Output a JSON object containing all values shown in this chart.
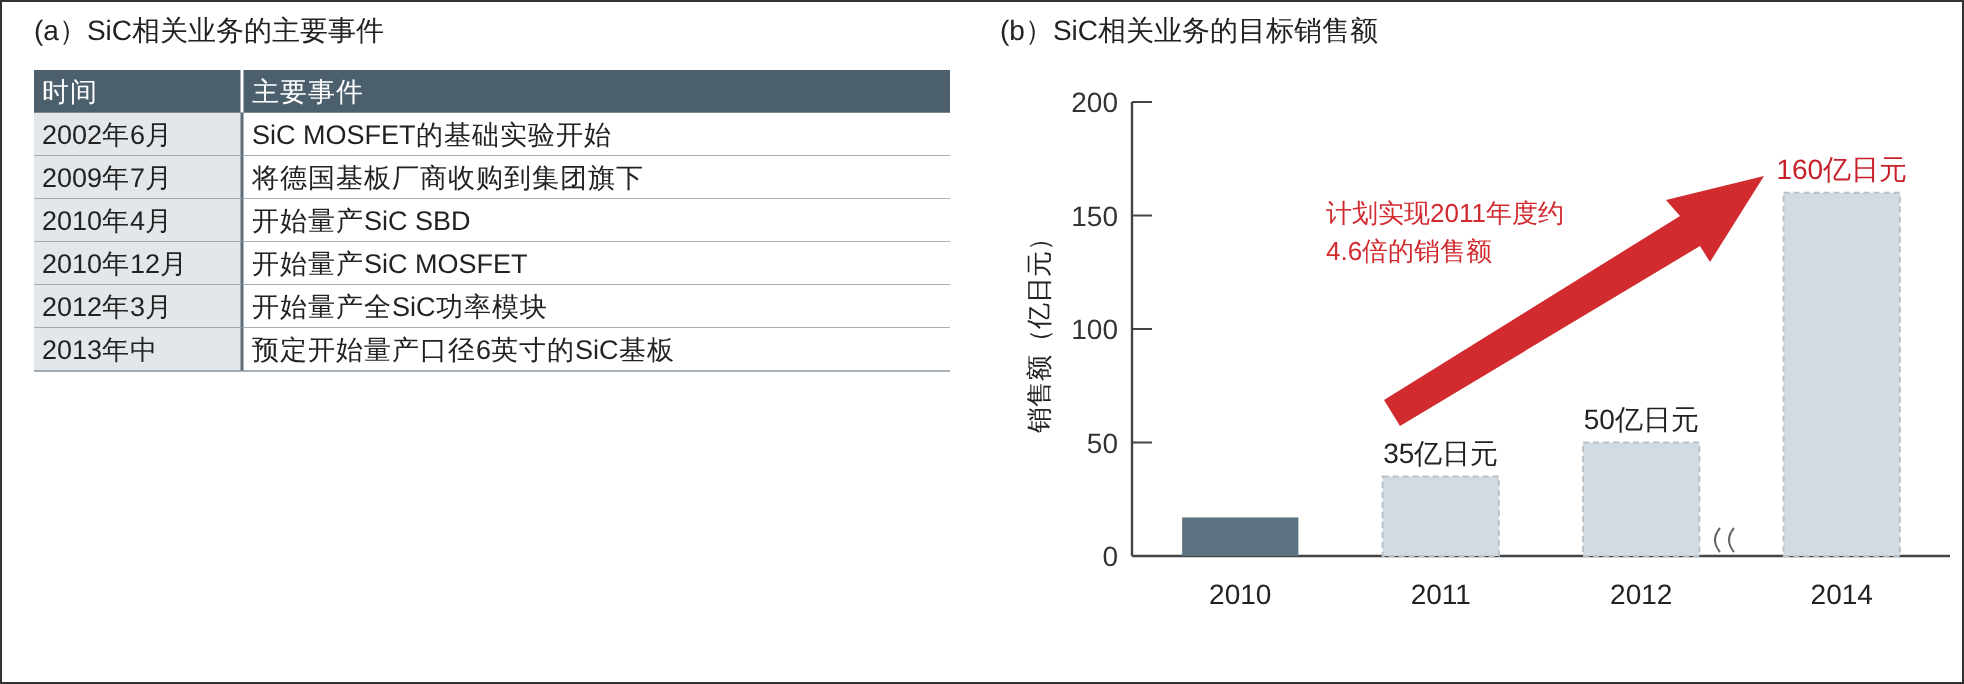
{
  "chart_data": [
    {
      "type": "other",
      "title": "(a）SiC相关业务的主要事件",
      "annotations": [
        "时间",
        "主要事件",
        "2002年6月",
        "SiC MOSFET的基础实验开始",
        "2009年7月",
        "将德国基板厂商收购到集团旗下",
        "2010年4月",
        "开始量产SiC SBD",
        "2010年12月",
        "开始量产SiC MOSFET",
        "2012年3月",
        "开始量产全SiC功率模块",
        "2013年中",
        "预定开始量产口径6英寸的SiC基板"
      ]
    },
    {
      "type": "bar",
      "title": "(b）SiC相关业务的目标销售额",
      "ylabel": "销售额（亿日元）",
      "categories": [
        "2010",
        "2011",
        "2012",
        "2014"
      ],
      "values": [
        17,
        35,
        50,
        160
      ],
      "colors": [
        "#5e7381",
        "#d3dbe2",
        "#d3dbe2",
        "#d3dbe2"
      ],
      "value_labels": [
        null,
        "35亿日元",
        "50亿日元",
        "160亿日元"
      ],
      "ylim": [
        0,
        200
      ],
      "yticks": [
        0,
        50,
        100,
        150,
        200
      ],
      "grid": false,
      "annotations": [
        "计划实现2011年度约\n4.6倍的销售额"
      ]
    }
  ]
}
